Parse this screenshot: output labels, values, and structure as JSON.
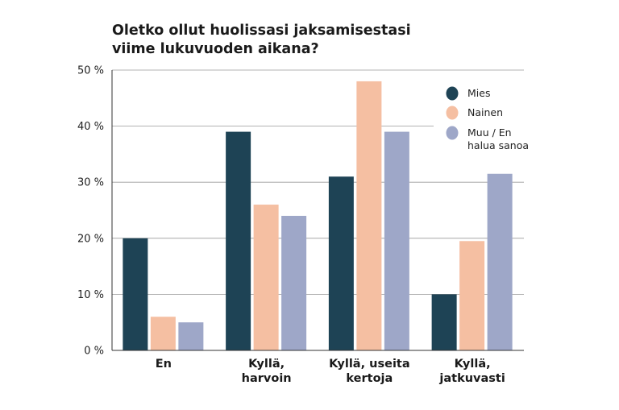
{
  "chart_data": {
    "type": "bar",
    "title_lines": [
      "Oletko ollut huolissasi jaksamisestasi",
      "viime lukuvuoden aikana?"
    ],
    "categories": [
      [
        "En"
      ],
      [
        "Kyllä,",
        "harvoin"
      ],
      [
        "Kyllä, useita",
        "kertoja"
      ],
      [
        "Kyllä,",
        "jatkuvasti"
      ]
    ],
    "series": [
      {
        "name": [
          "Mies"
        ],
        "color": "#1e4355",
        "values": [
          20,
          39,
          31,
          10
        ]
      },
      {
        "name": [
          "Nainen"
        ],
        "color": "#f5bfa2",
        "values": [
          6,
          26,
          48,
          19.5
        ]
      },
      {
        "name": [
          "Muu / En",
          "halua sanoa"
        ],
        "color": "#9ea7c8",
        "values": [
          5,
          24,
          39,
          31.5
        ]
      }
    ],
    "ylim": [
      0,
      50
    ],
    "yticks": [
      "0 %",
      "10 %",
      "20 %",
      "30 %",
      "40 %",
      "50 %"
    ],
    "grid": true,
    "legend_position": "top-right"
  }
}
